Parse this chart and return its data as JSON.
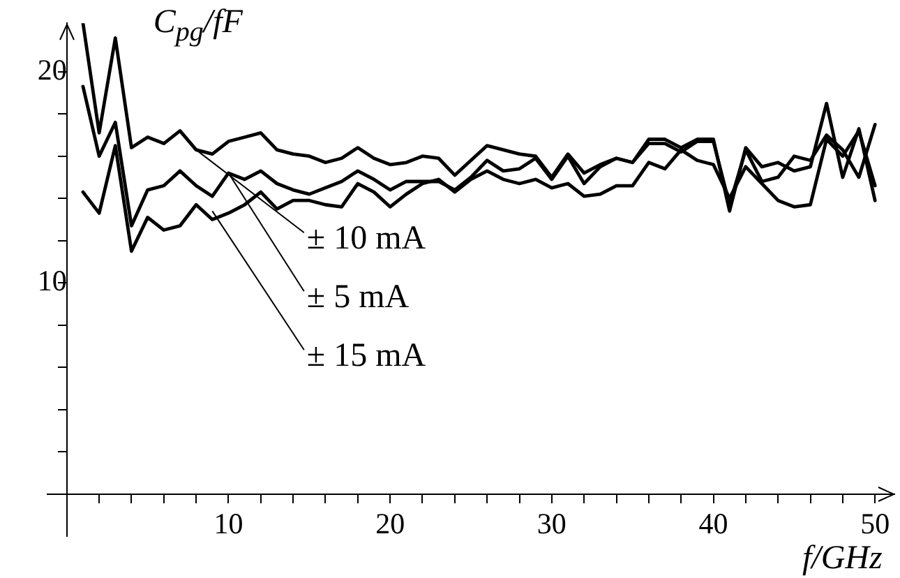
{
  "chart_data": {
    "type": "line",
    "xlabel": "f/GHz",
    "ylabel": "C$_{pg}$/fF",
    "x": [
      1,
      2,
      3,
      4,
      5,
      6,
      7,
      8,
      9,
      10,
      11,
      12,
      13,
      14,
      15,
      16,
      17,
      18,
      19,
      20,
      21,
      22,
      23,
      24,
      25,
      26,
      27,
      28,
      29,
      30,
      31,
      32,
      33,
      34,
      35,
      36,
      37,
      38,
      39,
      40,
      41,
      42,
      43,
      44,
      45,
      46,
      47,
      48,
      49,
      50
    ],
    "series": [
      {
        "color": "#000000",
        "values": [
          22.3,
          17.1,
          21.6,
          16.4,
          16.9,
          16.6,
          17.2,
          16.3,
          16.1,
          16.7,
          16.9,
          17.1,
          16.3,
          16.1,
          16.0,
          15.7,
          15.9,
          16.4,
          15.9,
          15.6,
          15.7,
          16.0,
          15.9,
          15.1,
          15.8,
          16.5,
          16.3,
          16.1,
          16.0,
          15.0,
          16.1,
          15.2,
          15.6,
          15.9,
          15.7,
          16.8,
          16.8,
          16.4,
          16.8,
          16.8,
          13.4,
          16.4,
          15.5,
          15.7,
          15.3,
          15.5,
          18.5,
          15.0,
          17.3,
          13.9
        ]
      },
      {
        "color": "#000000",
        "values": [
          19.3,
          16.0,
          17.6,
          12.7,
          14.4,
          14.6,
          15.3,
          14.6,
          14.1,
          15.2,
          14.9,
          15.3,
          14.7,
          14.4,
          14.2,
          14.5,
          14.8,
          15.3,
          14.9,
          14.4,
          14.8,
          14.8,
          14.8,
          14.4,
          15.0,
          15.8,
          15.3,
          15.4,
          15.9,
          14.9,
          16.0,
          14.7,
          15.5,
          15.9,
          15.7,
          16.6,
          16.6,
          16.2,
          16.7,
          16.7,
          13.7,
          16.3,
          14.8,
          15.0,
          16.0,
          15.8,
          17.0,
          16.3,
          15.0,
          17.5
        ]
      },
      {
        "color": "#000000",
        "values": [
          14.3,
          13.3,
          16.5,
          11.5,
          13.1,
          12.5,
          12.7,
          13.7,
          13.0,
          13.3,
          13.7,
          14.3,
          13.5,
          13.9,
          13.9,
          13.7,
          13.6,
          14.7,
          14.3,
          13.6,
          14.2,
          14.7,
          14.9,
          14.3,
          14.9,
          15.3,
          14.9,
          14.7,
          14.9,
          14.5,
          14.7,
          14.1,
          14.2,
          14.6,
          14.6,
          15.7,
          15.4,
          16.3,
          15.8,
          15.6,
          14.0,
          15.5,
          14.7,
          13.9,
          13.6,
          13.7,
          16.8,
          16.0,
          17.2,
          14.6
        ]
      }
    ],
    "xlim": [
      -1.2,
      51.2
    ],
    "ylim": [
      -2,
      22.3
    ],
    "xticks": [
      {
        "value": 2,
        "label": null
      },
      {
        "value": 4,
        "label": null
      },
      {
        "value": 6,
        "label": null
      },
      {
        "value": 8,
        "label": null
      },
      10,
      {
        "value": 12,
        "label": null
      },
      {
        "value": 14,
        "label": null
      },
      {
        "value": 16,
        "label": null
      },
      {
        "value": 18,
        "label": null
      },
      20,
      {
        "value": 22,
        "label": null
      },
      {
        "value": 24,
        "label": null
      },
      {
        "value": 26,
        "label": null
      },
      {
        "value": 28,
        "label": null
      },
      30,
      {
        "value": 32,
        "label": null
      },
      {
        "value": 34,
        "label": null
      },
      {
        "value": 36,
        "label": null
      },
      {
        "value": 38,
        "label": null
      },
      40,
      {
        "value": 42,
        "label": null
      },
      {
        "value": 44,
        "label": null
      },
      {
        "value": 46,
        "label": null
      },
      {
        "value": 48,
        "label": null
      },
      50
    ],
    "yticks": [
      {
        "value": 2,
        "label": null
      },
      {
        "value": 4,
        "label": null
      },
      {
        "value": 6,
        "label": null
      },
      {
        "value": 8,
        "label": null
      },
      10,
      {
        "value": 12,
        "label": null
      },
      {
        "value": 14,
        "label": null
      },
      {
        "value": 16,
        "label": null
      },
      {
        "value": 18,
        "label": null
      },
      20
    ],
    "annotations": [
      {
        "text": "± 10 mA",
        "x": 8,
        "y": 16.3
      },
      {
        "text": "± 5 mA",
        "x": 10,
        "y": 15.2
      },
      {
        "text": "± 15 mA",
        "x": 9,
        "y": 13.4
      }
    ],
    "grid": false,
    "legend": false,
    "marker": "none",
    "line_style": "solid"
  }
}
